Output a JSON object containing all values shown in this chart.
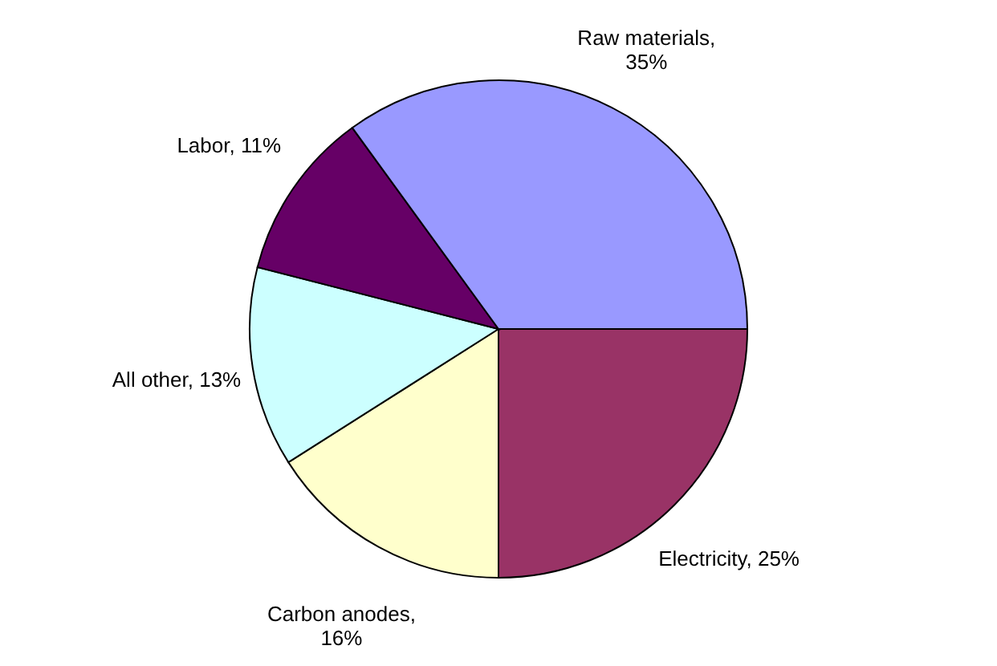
{
  "chart_data": {
    "type": "pie",
    "categories": [
      "Electricity, 25%",
      "Carbon anodes, 16%",
      "All other, 13%",
      "Labor, 11%",
      "Raw materials, 35%"
    ],
    "values": [
      25,
      16,
      13,
      11,
      35
    ],
    "colors": [
      "#993366",
      "#ffffcc",
      "#ccffff",
      "#660066",
      "#9999ff"
    ]
  }
}
